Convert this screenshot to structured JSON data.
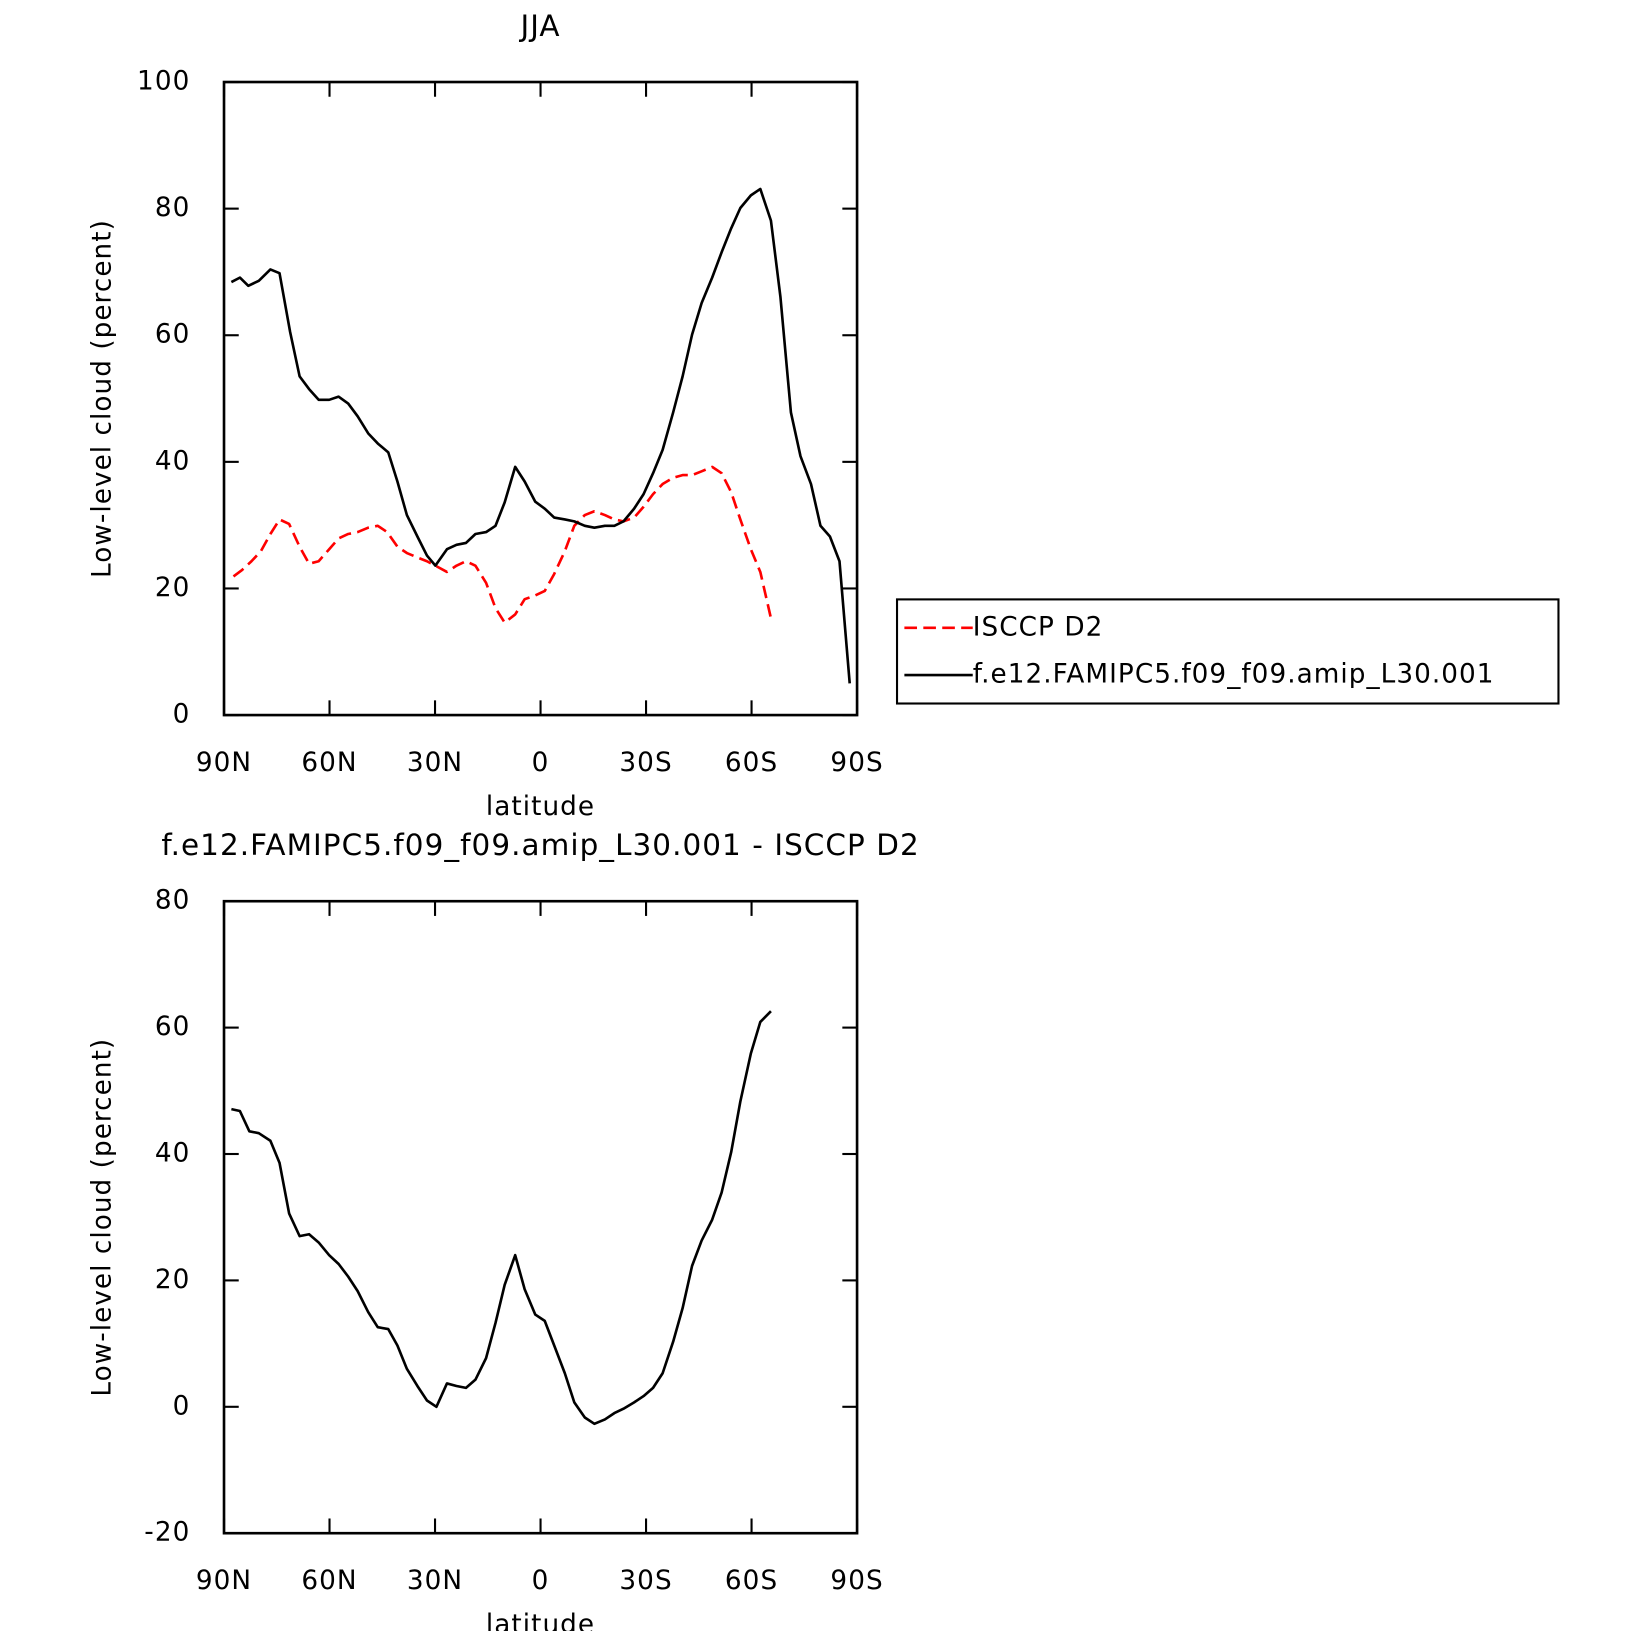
{
  "chart_data": [
    {
      "type": "line",
      "title": "JJA",
      "xlabel": "latitude",
      "ylabel": "Low-level cloud (percent)",
      "xlim": [
        90,
        -90
      ],
      "xticks": [
        {
          "value": 90,
          "label": "90N"
        },
        {
          "value": 60,
          "label": "60N"
        },
        {
          "value": 30,
          "label": "30N"
        },
        0,
        {
          "value": -30,
          "label": "30S"
        },
        {
          "value": -60,
          "label": "60S"
        },
        {
          "value": -90,
          "label": "90S"
        }
      ],
      "ylim": [
        0,
        100
      ],
      "yticks": [
        0,
        20,
        40,
        60,
        80,
        100
      ],
      "legend": "right",
      "series": [
        {
          "name": "ISCCP D2",
          "color": "#ff0000",
          "dashed": true,
          "x": [
            87.3,
            84.9,
            82.2,
            79.5,
            76.8,
            74.2,
            71.5,
            68.5,
            65.8,
            63.1,
            60.1,
            57.4,
            54.7,
            52.0,
            49.0,
            46.3,
            43.6,
            40.7,
            38.0,
            35.0,
            32.3,
            29.9,
            26.6,
            23.9,
            21.2,
            18.5,
            15.5,
            12.8,
            10.2,
            7.2,
            4.5,
            1.5,
            -1.2,
            -3.9,
            -6.9,
            -9.6,
            -12.6,
            -15.3,
            -18.3,
            -21.0,
            -23.6,
            -26.6,
            -29.3,
            -32.0,
            -34.7,
            -37.7,
            -40.4,
            -43.1,
            -45.8,
            -48.8,
            -51.5,
            -54.2,
            -56.8,
            -59.8,
            -62.5,
            -65.5
          ],
          "values": [
            21.9,
            22.9,
            24.3,
            25.9,
            28.6,
            30.9,
            30.2,
            26.6,
            23.9,
            24.3,
            26.2,
            27.9,
            28.6,
            28.9,
            29.6,
            29.9,
            28.9,
            26.6,
            25.6,
            24.9,
            24.3,
            23.6,
            22.6,
            23.6,
            24.3,
            23.6,
            20.9,
            16.9,
            14.6,
            15.9,
            18.3,
            18.9,
            19.6,
            22.3,
            25.9,
            29.9,
            31.6,
            32.2,
            31.6,
            30.9,
            30.6,
            31.2,
            32.9,
            34.9,
            36.5,
            37.5,
            37.9,
            37.9,
            38.5,
            39.2,
            38.2,
            35.2,
            30.9,
            26.2,
            22.6,
            15.3
          ]
        },
        {
          "name": "f.e12.FAMIPC5.f09_f09.amip_L30.001",
          "color": "#000000",
          "dashed": false,
          "x": [
            87.9,
            85.5,
            83.1,
            80.1,
            76.8,
            74.2,
            71.2,
            68.5,
            65.8,
            63.1,
            60.1,
            57.4,
            54.7,
            52.0,
            49.0,
            46.3,
            43.3,
            40.7,
            38.0,
            35.0,
            32.3,
            29.9,
            26.6,
            23.9,
            21.2,
            18.5,
            15.5,
            12.8,
            10.2,
            7.2,
            4.5,
            1.5,
            -1.2,
            -3.9,
            -6.9,
            -9.6,
            -12.6,
            -15.3,
            -18.3,
            -21.0,
            -23.6,
            -26.6,
            -29.3,
            -32.0,
            -34.7,
            -37.7,
            -40.4,
            -43.1,
            -45.8,
            -48.8,
            -51.5,
            -54.2,
            -56.8,
            -59.8,
            -62.5,
            -65.5,
            -68.2,
            -71.2,
            -73.9,
            -76.9,
            -79.6,
            -82.3,
            -85.0,
            -87.9
          ],
          "values": [
            68.4,
            69.1,
            67.8,
            68.6,
            70.4,
            69.8,
            60.5,
            53.5,
            51.5,
            49.8,
            49.8,
            50.3,
            49.2,
            47.2,
            44.5,
            42.9,
            41.5,
            36.9,
            31.6,
            28.2,
            25.2,
            23.6,
            26.2,
            26.9,
            27.2,
            28.6,
            28.9,
            29.9,
            33.6,
            39.2,
            36.9,
            33.7,
            32.6,
            31.2,
            30.9,
            30.6,
            29.9,
            29.6,
            29.9,
            29.9,
            30.6,
            32.6,
            34.9,
            38.2,
            41.9,
            47.8,
            53.5,
            60.1,
            65.1,
            69.1,
            73.1,
            76.9,
            80.1,
            82.1,
            83.1,
            78.1,
            66.1,
            47.8,
            40.9,
            36.5,
            29.9,
            28.2,
            24.3,
            5.0
          ]
        }
      ]
    },
    {
      "type": "line",
      "title": "f.e12.FAMIPC5.f09_f09.amip_L30.001 - ISCCP D2",
      "xlabel": "latitude",
      "ylabel": "Low-level cloud (percent)",
      "xlim": [
        90,
        -90
      ],
      "xticks": [
        {
          "value": 90,
          "label": "90N"
        },
        {
          "value": 60,
          "label": "60N"
        },
        {
          "value": 30,
          "label": "30N"
        },
        0,
        {
          "value": -30,
          "label": "30S"
        },
        {
          "value": -60,
          "label": "60S"
        },
        {
          "value": -90,
          "label": "90S"
        }
      ],
      "ylim": [
        -20,
        80
      ],
      "yticks": [
        -20,
        0,
        20,
        40,
        60,
        80
      ],
      "series": [
        {
          "color": "#000000",
          "dashed": false,
          "x": [
            87.9,
            85.5,
            82.8,
            80.1,
            76.8,
            74.2,
            71.5,
            68.5,
            65.8,
            63.1,
            60.1,
            57.4,
            54.7,
            52.0,
            49.0,
            46.3,
            43.3,
            40.7,
            38.0,
            35.0,
            32.3,
            29.6,
            26.6,
            23.9,
            21.2,
            18.5,
            15.5,
            12.8,
            10.2,
            7.2,
            4.5,
            1.5,
            -1.2,
            -3.9,
            -6.9,
            -9.6,
            -12.6,
            -15.3,
            -18.3,
            -21.0,
            -23.6,
            -26.6,
            -29.3,
            -32.0,
            -34.7,
            -37.7,
            -40.4,
            -43.1,
            -45.8,
            -48.8,
            -51.5,
            -54.2,
            -56.8,
            -59.8,
            -62.5,
            -65.5
          ],
          "values": [
            47.1,
            46.8,
            43.6,
            43.3,
            42.1,
            38.6,
            30.6,
            27.0,
            27.3,
            26.0,
            24.0,
            22.6,
            20.6,
            18.3,
            15.0,
            12.6,
            12.3,
            9.7,
            6.0,
            3.3,
            1.0,
            0,
            3.7,
            3.3,
            3.0,
            4.3,
            7.7,
            13.3,
            19.3,
            24.0,
            18.6,
            14.6,
            13.6,
            9.7,
            5.3,
            0.7,
            -1.7,
            -2.7,
            -2.0,
            -1.0,
            -0.3,
            0.7,
            1.7,
            3.0,
            5.3,
            10.3,
            15.6,
            22.3,
            26.3,
            29.6,
            33.9,
            40.3,
            48.3,
            55.9,
            60.9,
            62.6
          ]
        }
      ]
    }
  ]
}
